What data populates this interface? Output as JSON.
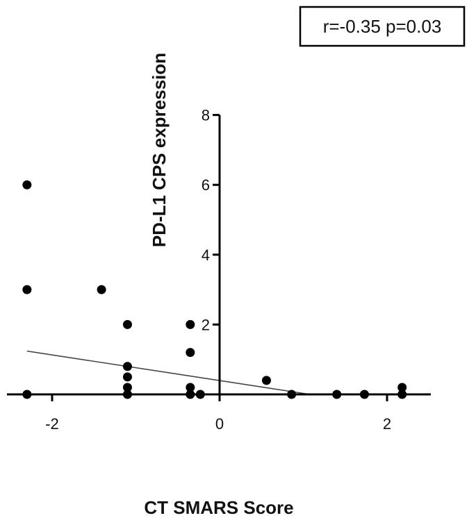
{
  "chart_data": {
    "type": "scatter",
    "title": "",
    "xlabel": "CT SMARS Score",
    "ylabel": "PD-L1 CPS expression",
    "xlim": [
      -2.5,
      2.5
    ],
    "ylim": [
      0,
      8
    ],
    "x_ticks": [
      -2,
      0,
      2
    ],
    "y_ticks": [
      2,
      4,
      6,
      8
    ],
    "annotation": "r=-0.35 p=0.03",
    "grid": false,
    "legend": "none",
    "series": [
      {
        "points": [
          {
            "x": -2.3,
            "y": 6
          },
          {
            "x": -2.3,
            "y": 3
          },
          {
            "x": -2.3,
            "y": 0
          },
          {
            "x": -1.41,
            "y": 3
          },
          {
            "x": -1.1,
            "y": 2
          },
          {
            "x": -1.1,
            "y": 0.8
          },
          {
            "x": -1.1,
            "y": 0.5
          },
          {
            "x": -1.1,
            "y": 0.2
          },
          {
            "x": -1.1,
            "y": 0
          },
          {
            "x": -0.35,
            "y": 2
          },
          {
            "x": -0.35,
            "y": 1.2
          },
          {
            "x": -0.35,
            "y": 0.2
          },
          {
            "x": -0.35,
            "y": 0
          },
          {
            "x": -0.23,
            "y": 0
          },
          {
            "x": 0.56,
            "y": 0.4
          },
          {
            "x": 0.86,
            "y": 0
          },
          {
            "x": 1.4,
            "y": 0
          },
          {
            "x": 1.73,
            "y": 0
          },
          {
            "x": 2.18,
            "y": 0.2
          },
          {
            "x": 2.18,
            "y": 0
          }
        ]
      }
    ],
    "regression_line": {
      "x": [
        -2.3,
        1.08
      ],
      "y": [
        1.24,
        0
      ]
    },
    "colors": {
      "points": "#000000",
      "axes": "#000000",
      "regression": "#444444"
    }
  }
}
